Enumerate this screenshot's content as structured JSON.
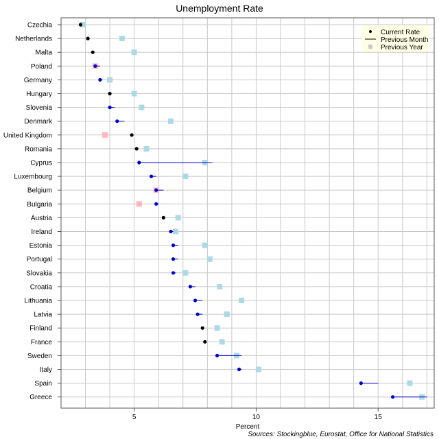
{
  "chart_data": {
    "type": "scatter",
    "title": "Unemployment Rate",
    "xlabel": "Percent",
    "ylabel": "",
    "source": "Sources: Stockingblue, Eurostat, Office for National Statistics",
    "xlim": [
      2.0,
      17.3
    ],
    "x_ticks": [
      5,
      10,
      15
    ],
    "x_tick_labels": [
      "5",
      "10",
      "15"
    ],
    "grid": true,
    "legend_position": "top-right",
    "legend": [
      {
        "key": "current",
        "label": "Current Rate"
      },
      {
        "key": "previous_month",
        "label": "Previous Month"
      },
      {
        "key": "previous_year",
        "label": "Previous Year"
      }
    ],
    "colors": {
      "current_rising": "#ff0000",
      "current_falling": "#0000cc",
      "current_unchanged": "#000000",
      "month_line": "#0000cc",
      "year_lower": "#add8e6",
      "year_higher": "#ffb6c1",
      "grid": "#c8c8c8",
      "legend_bg": "#ffffe6"
    },
    "categories": [
      "Czechia",
      "Netherlands",
      "Malta",
      "Poland",
      "Germany",
      "Hungary",
      "Slovenia",
      "Denmark",
      "United Kingdom",
      "Romania",
      "Cyprus",
      "Luxembourg",
      "Belgium",
      "Bulgaria",
      "Austria",
      "Ireland",
      "Estonia",
      "Portugal",
      "Slovakia",
      "Croatia",
      "Lithuania",
      "Latvia",
      "Finland",
      "France",
      "Sweden",
      "Italy",
      "Spain",
      "Greece"
    ],
    "series": [
      {
        "name": "Current Rate",
        "values": [
          2.8,
          3.1,
          3.3,
          3.4,
          3.6,
          4.0,
          4.0,
          4.3,
          4.9,
          5.1,
          5.2,
          5.7,
          5.9,
          5.9,
          6.2,
          6.5,
          6.6,
          6.6,
          6.6,
          7.3,
          7.5,
          7.6,
          7.8,
          7.9,
          8.4,
          9.3,
          14.3,
          15.6
        ]
      },
      {
        "name": "Previous Month",
        "values": [
          2.8,
          3.1,
          3.3,
          3.6,
          3.7,
          4.0,
          4.2,
          4.6,
          4.9,
          5.1,
          8.2,
          5.9,
          6.2,
          6.0,
          6.2,
          6.6,
          6.8,
          6.8,
          6.7,
          7.5,
          7.8,
          7.8,
          7.8,
          7.9,
          9.4,
          9.4,
          15.0,
          17.0
        ]
      },
      {
        "name": "Previous Year",
        "values": [
          2.9,
          4.5,
          5.0,
          3.4,
          4.0,
          5.0,
          5.3,
          6.5,
          3.8,
          5.5,
          7.9,
          7.1,
          5.9,
          5.2,
          6.8,
          6.7,
          7.9,
          8.1,
          7.1,
          8.5,
          9.4,
          8.8,
          8.4,
          8.6,
          9.2,
          10.1,
          16.3,
          16.8
        ]
      }
    ]
  }
}
